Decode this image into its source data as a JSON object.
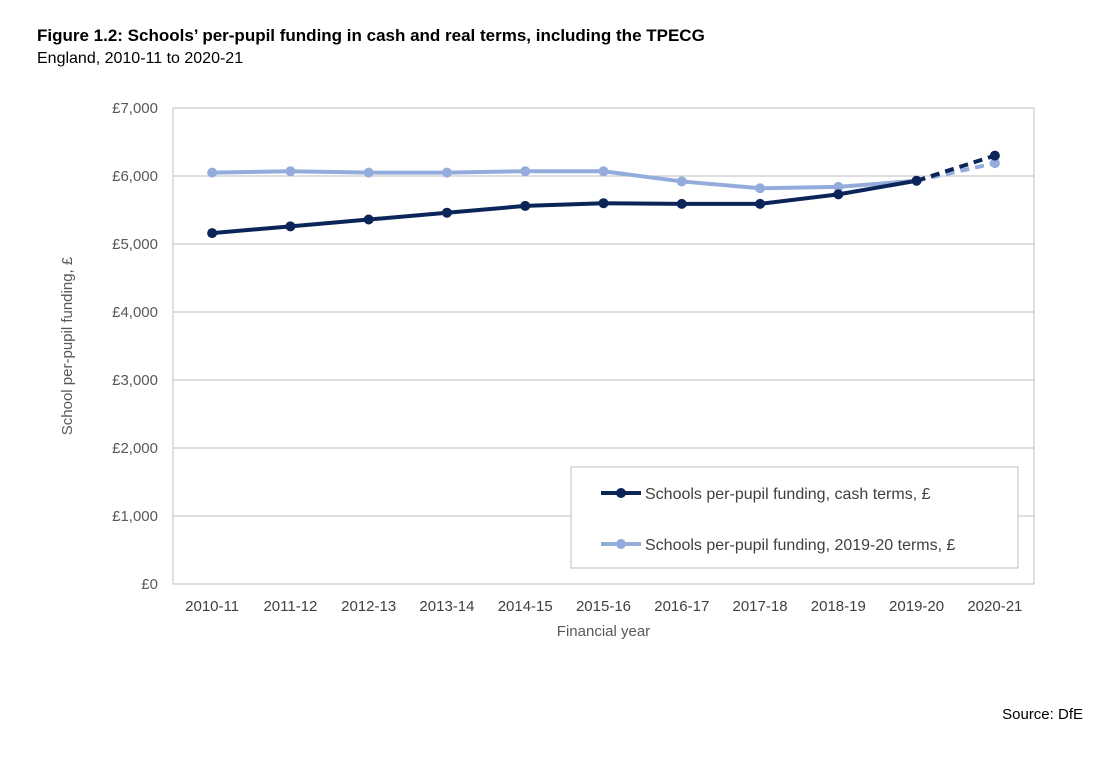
{
  "title": "Figure 1.2: Schools’ per-pupil funding in cash and real terms, including the TPECG",
  "subtitle": "England, 2010-11 to 2020-21",
  "source": "Source: DfE",
  "chart_data": {
    "type": "line",
    "categories": [
      "2010-11",
      "2011-12",
      "2012-13",
      "2013-14",
      "2014-15",
      "2015-16",
      "2016-17",
      "2017-18",
      "2018-19",
      "2019-20",
      "2020-21"
    ],
    "xlabel": "Financial year",
    "ylabel": "School per-pupil funding, £",
    "ylim": [
      0,
      7000
    ],
    "yticks": [
      0,
      1000,
      2000,
      3000,
      4000,
      5000,
      6000,
      7000
    ],
    "ytick_labels": [
      "£0",
      "£1,000",
      "£2,000",
      "£3,000",
      "£4,000",
      "£5,000",
      "£6,000",
      "£7,000"
    ],
    "grid": true,
    "legend_position": "bottom-right",
    "projection_from_index": 9,
    "series": [
      {
        "name": "Schools per-pupil funding, cash terms, £",
        "color": "#0b2559",
        "values": [
          5160,
          5260,
          5360,
          5460,
          5560,
          5600,
          5590,
          5590,
          5730,
          5930,
          6300
        ]
      },
      {
        "name": "Schools per-pupil funding, 2019-20 terms, £",
        "color": "#93acdc",
        "values": [
          6050,
          6070,
          6050,
          6050,
          6070,
          6070,
          5920,
          5820,
          5840,
          5930,
          6190
        ]
      }
    ]
  }
}
